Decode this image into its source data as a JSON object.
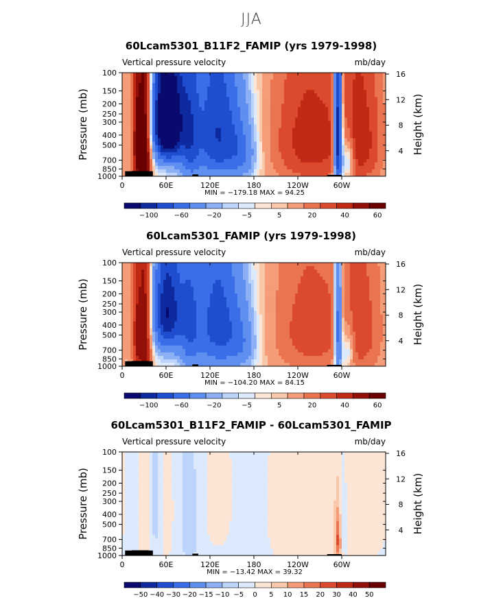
{
  "page_title": "JJA",
  "chart_data": [
    {
      "type": "heatmap",
      "title": "60Lcam5301_B11F2_FAMIP (yrs 1979-1998)",
      "left_label": "Vertical pressure velocity",
      "units": "mb/day",
      "ylabel": "Pressure (mb)",
      "y2label": "Height (km)",
      "y_ticks": [
        100,
        150,
        200,
        250,
        300,
        400,
        500,
        700,
        850,
        1000
      ],
      "y2_ticks": [
        4,
        8,
        12,
        16
      ],
      "x_ticks": [
        "0",
        "60E",
        "120E",
        "180",
        "120W",
        "60W"
      ],
      "x_range": [
        0,
        360
      ],
      "ylim": [
        1000,
        100
      ],
      "min": -179.18,
      "max": 94.25,
      "minmax_label": "MIN = −179.18   MAX =  94.25",
      "colorbar_labels": [
        "-100",
        "-60",
        "-20",
        "-5",
        "5",
        "20",
        "40",
        "60"
      ],
      "levels": [
        -100,
        -80,
        -60,
        -40,
        -20,
        -10,
        -5,
        0,
        5,
        10,
        20,
        30,
        40,
        50,
        60
      ],
      "features": [
        {
          "lon": 20,
          "p": 500,
          "amp": 50,
          "wl": 5,
          "wp": 800
        },
        {
          "lon": 32,
          "p": 480,
          "amp": 75,
          "wl": 6,
          "wp": 700
        },
        {
          "lon": 62,
          "p": 300,
          "amp": -165,
          "wl": 14,
          "wp": 250
        },
        {
          "lon": 92,
          "p": 400,
          "amp": -55,
          "wl": 10,
          "wp": 450
        },
        {
          "lon": 130,
          "p": 380,
          "amp": -80,
          "wl": 22,
          "wp": 420
        },
        {
          "lon": 165,
          "p": 600,
          "amp": -35,
          "wl": 15,
          "wp": 300
        },
        {
          "lon": 255,
          "p": 450,
          "amp": 45,
          "wl": 45,
          "wp": 600
        },
        {
          "lon": 295,
          "p": 420,
          "amp": -130,
          "wl": 4,
          "wp": 550
        },
        {
          "lon": 308,
          "p": 700,
          "amp": -45,
          "wl": 6,
          "wp": 250
        },
        {
          "lon": 330,
          "p": 450,
          "amp": 35,
          "wl": 25,
          "wp": 600
        }
      ]
    },
    {
      "type": "heatmap",
      "title": "60Lcam5301_FAMIP (yrs 1979-1998)",
      "left_label": "Vertical pressure velocity",
      "units": "mb/day",
      "ylabel": "Pressure (mb)",
      "y2label": "Height (km)",
      "y_ticks": [
        100,
        150,
        200,
        250,
        300,
        400,
        500,
        700,
        850,
        1000
      ],
      "y2_ticks": [
        4,
        8,
        12,
        16
      ],
      "x_ticks": [
        "0",
        "60E",
        "120E",
        "180",
        "120W",
        "60W"
      ],
      "x_range": [
        0,
        360
      ],
      "ylim": [
        1000,
        100
      ],
      "min": -104.2,
      "max": 84.15,
      "minmax_label": "MIN = −104.20   MAX =  84.15",
      "colorbar_labels": [
        "-100",
        "-60",
        "-20",
        "-5",
        "5",
        "20",
        "40",
        "60"
      ],
      "levels": [
        -100,
        -80,
        -60,
        -40,
        -20,
        -10,
        -5,
        0,
        5,
        10,
        20,
        30,
        40,
        50,
        60
      ],
      "features": [
        {
          "lon": 20,
          "p": 500,
          "amp": 40,
          "wl": 5,
          "wp": 800
        },
        {
          "lon": 32,
          "p": 480,
          "amp": 60,
          "wl": 6,
          "wp": 700
        },
        {
          "lon": 62,
          "p": 300,
          "amp": -100,
          "wl": 14,
          "wp": 250
        },
        {
          "lon": 92,
          "p": 400,
          "amp": -45,
          "wl": 10,
          "wp": 450
        },
        {
          "lon": 130,
          "p": 380,
          "amp": -70,
          "wl": 22,
          "wp": 420
        },
        {
          "lon": 165,
          "p": 600,
          "amp": -30,
          "wl": 15,
          "wp": 300
        },
        {
          "lon": 255,
          "p": 450,
          "amp": 35,
          "wl": 45,
          "wp": 600
        },
        {
          "lon": 295,
          "p": 420,
          "amp": -75,
          "wl": 4,
          "wp": 550
        },
        {
          "lon": 308,
          "p": 700,
          "amp": -35,
          "wl": 6,
          "wp": 250
        },
        {
          "lon": 330,
          "p": 450,
          "amp": 28,
          "wl": 25,
          "wp": 600
        }
      ]
    },
    {
      "type": "heatmap",
      "title": "60Lcam5301_B11F2_FAMIP - 60Lcam5301_FAMIP",
      "left_label": "Vertical pressure velocity",
      "units": "mb/day",
      "ylabel": "Pressure (mb)",
      "y2label": "Height (km)",
      "y_ticks": [
        100,
        150,
        200,
        250,
        300,
        400,
        500,
        700,
        850,
        1000
      ],
      "y2_ticks": [
        4,
        8,
        12,
        16
      ],
      "x_ticks": [
        "0",
        "60E",
        "120E",
        "180",
        "120W",
        "60W"
      ],
      "x_range": [
        0,
        360
      ],
      "ylim": [
        1000,
        100
      ],
      "min": -13.42,
      "max": 39.32,
      "minmax_label": "MIN = −13.42   MAX =  39.32",
      "colorbar_labels": [
        "-50",
        "-40",
        "-30",
        "-20",
        "-15",
        "-10",
        "-5",
        "0",
        "5",
        "10",
        "15",
        "20",
        "30",
        "40",
        "50"
      ],
      "levels": [
        -50,
        -40,
        -30,
        -20,
        -15,
        -10,
        -5,
        0,
        5,
        10,
        15,
        20,
        30,
        40,
        50
      ],
      "features": [
        {
          "lon": 0,
          "p": 500,
          "amp": -2,
          "wl": 400,
          "wp": 3000
        },
        {
          "lon": 60,
          "p": 400,
          "amp": 5,
          "wl": 8,
          "wp": 500
        },
        {
          "lon": 32,
          "p": 500,
          "amp": 8,
          "wl": 6,
          "wp": 600
        },
        {
          "lon": 45,
          "p": 300,
          "amp": -7,
          "wl": 8,
          "wp": 400
        },
        {
          "lon": 92,
          "p": 500,
          "amp": -6,
          "wl": 10,
          "wp": 500
        },
        {
          "lon": 130,
          "p": 300,
          "amp": 4,
          "wl": 15,
          "wp": 400
        },
        {
          "lon": 260,
          "p": 400,
          "amp": 6,
          "wl": 40,
          "wp": 700
        },
        {
          "lon": 295,
          "p": 700,
          "amp": 22,
          "wl": 3,
          "wp": 300
        },
        {
          "lon": 300,
          "p": 500,
          "amp": -6,
          "wl": 5,
          "wp": 300
        },
        {
          "lon": 340,
          "p": 300,
          "amp": 4,
          "wl": 20,
          "wp": 500
        }
      ]
    }
  ],
  "colors": {
    "palette": [
      "#0a0a6e",
      "#0d2a9e",
      "#1f4dd0",
      "#3a6ee8",
      "#5e8ef0",
      "#8db0f5",
      "#bcd4fa",
      "#dde9fc",
      "#fde5d6",
      "#f9c7aa",
      "#f49d78",
      "#eb7450",
      "#dc4a2e",
      "#c02a15",
      "#921008",
      "#6a0000"
    ],
    "topography": "#000000",
    "axes": "#000000"
  }
}
